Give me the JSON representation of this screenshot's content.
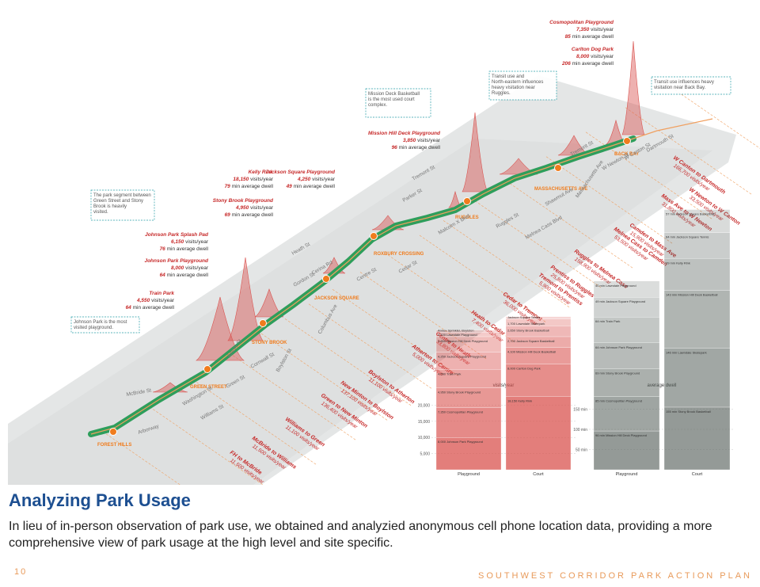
{
  "heading": "Analyzing Park Usage",
  "body": "In lieu of in-person observation of park use, we obtained and analyzied anonymous cell phone location data, providing a more comprehensive view of park usage at the high level and site specific.",
  "page_number": "10",
  "footer_title": "SOUTHWEST CORRIDOR PARK ACTION PLAN",
  "colors": {
    "accent": "#1d4f91",
    "park_green": "#2e9e5b",
    "peak_red": "#d9534f",
    "label_red": "#c62828",
    "station_orange": "#f07c1d",
    "callout_teal": "#2a9fa8",
    "footer_orange": "#e89a5a"
  },
  "stations": [
    "FOREST HILLS",
    "GREEN STREET",
    "STONY BROOK",
    "JACKSON SQUARE",
    "ROXBURY CROSSING",
    "RUGGLES",
    "MASSACHUSETTS AVE",
    "BACK BAY"
  ],
  "streets": [
    "Arborway",
    "McBride St",
    "Washington St",
    "Williams St",
    "Green St",
    "Amory St",
    "Cornwall St",
    "Boylston St",
    "Columbus Ave",
    "Gordon St",
    "Heath St",
    "Centre St",
    "Cerina Rd",
    "Cedar St",
    "Malcolm X Blvd",
    "Parker St",
    "Tremont St",
    "Ruggles St",
    "Melnea Cass Blvd",
    "Shawmut Ave",
    "Massachusetts Ave",
    "W Newton St",
    "W Canton St",
    "Dartmouth St",
    "Tremont St"
  ],
  "parks": [
    {
      "name": "Cosmopolitan Playground",
      "visits": "7,350",
      "visits_unit": "visits/year",
      "dwell": "85",
      "dwell_unit": "min average dwell"
    },
    {
      "name": "Carlton Dog Park",
      "visits": "8,000",
      "visits_unit": "visits/year",
      "dwell": "206",
      "dwell_unit": "min average dwell"
    },
    {
      "name": "Mission Hill Deck Playground",
      "visits": "3,850",
      "visits_unit": "visits/year",
      "dwell": "96",
      "dwell_unit": "min average dwell"
    },
    {
      "name": "Kelly Rink",
      "visits": "18,150",
      "visits_unit": "visits/year",
      "dwell": "79",
      "dwell_unit": "min average dwell"
    },
    {
      "name": "Jackson Square Playground",
      "visits": "4,250",
      "visits_unit": "visits/year",
      "dwell": "49",
      "dwell_unit": "min average dwell"
    },
    {
      "name": "Stony Brook Playground",
      "visits": "4,950",
      "visits_unit": "visits/year",
      "dwell": "69",
      "dwell_unit": "min average dwell"
    },
    {
      "name": "Johnson Park Splash Pad",
      "visits": "6,150",
      "visits_unit": "visits/year",
      "dwell": "76",
      "dwell_unit": "min average dwell"
    },
    {
      "name": "Johnson Park Playground",
      "visits": "8,000",
      "visits_unit": "visits/year",
      "dwell": "64",
      "dwell_unit": "min average dwell"
    },
    {
      "name": "Train Park",
      "visits": "4,550",
      "visits_unit": "visits/year",
      "dwell": "64",
      "dwell_unit": "min average dwell"
    }
  ],
  "callouts": [
    "Mission Deck Basketball is the most used court complex.",
    "Transit use and North-eastern influences heavy visitation near Ruggles.",
    "Transit use influences heavy visitation near Back Bay.",
    "The park segment between Green Street and Stony Brook is heavily visited.",
    "Johnson Park is the most visited playground."
  ],
  "segments": [
    {
      "label": "W Canton to Dartmouth",
      "visits": "166,700 visits/year"
    },
    {
      "label": "W Newton to W Canton",
      "visits": "33,500 visits/year"
    },
    {
      "label": "Mass Ave to W Newton",
      "visits": "31,800 visits/year"
    },
    {
      "label": "Camden to Mass Ave",
      "visits": "15,900 visits/year"
    },
    {
      "label": "Melnea Cass to Camden",
      "visits": "53,500 visits/year"
    },
    {
      "label": "Ruggles to Melnea Cass",
      "visits": "158,900 visits/year"
    },
    {
      "label": "Prentiss to Ruggles",
      "visits": "25,800 visits/year"
    },
    {
      "label": "Tremont to Prentiss",
      "visits": "5,900 visits/year"
    },
    {
      "label": "Cedar to Tremont",
      "visits": "36,000 visits/year"
    },
    {
      "label": "Heath to Cedar",
      "visits": "7,400 visits/year"
    },
    {
      "label": "Centre to Heath",
      "visits": "33,800 visits/year"
    },
    {
      "label": "Atherton to Centre",
      "visits": "5,000 visits/year"
    },
    {
      "label": "Boylston to Atherton",
      "visits": "11,100 visits/year"
    },
    {
      "label": "New Minton to Boylston",
      "visits": "137,100 visits/year"
    },
    {
      "label": "Green to New Minton",
      "visits": "136,400 visits/year"
    },
    {
      "label": "Williams to Green",
      "visits": "11,100 visits/year"
    },
    {
      "label": "McBride to Williams",
      "visits": "11,500 visits/year"
    },
    {
      "label": "FH to McBride",
      "visits": "11,500 visits/year"
    }
  ],
  "chart_data": [
    {
      "type": "bar",
      "title": "visits/year",
      "categories": [
        "Playground",
        "Court"
      ],
      "ylim": [
        0,
        20000
      ],
      "y_ticks": [
        "20,000",
        "15,000",
        "10,000",
        "5,000"
      ],
      "segments": [
        {
          "category": "Playground",
          "label": "8,000 Johnson Park Playground",
          "value": 8000
        },
        {
          "category": "Playground",
          "label": "7,350 Cosmopolitan Playground",
          "value": 7350
        },
        {
          "category": "Playground",
          "label": "4,950 Stony Brook Playground",
          "value": 4950
        },
        {
          "category": "Playground",
          "label": "4,550 Train Park",
          "value": 4550
        },
        {
          "category": "Playground",
          "label": "4,250 Jackson Square Playground",
          "value": 4250
        },
        {
          "category": "Playground",
          "label": "3,850 Mission Hill Deck Playground",
          "value": 3850
        },
        {
          "category": "Playground",
          "label": "1,100 Lawndale Playground",
          "value": 1100
        },
        {
          "category": "Playground",
          "label": "Annex Sprinkler, Boylston",
          "value": 500
        },
        {
          "category": "Court",
          "label": "18,150 Kelly Rink",
          "value": 18150
        },
        {
          "category": "Court",
          "label": "8,000 Carlton Dog Park",
          "value": 8000
        },
        {
          "category": "Court",
          "label": "4,100 Mission Hill Deck Basketball",
          "value": 4100
        },
        {
          "category": "Court",
          "label": "2,700 Jackson Square Basketball",
          "value": 2700
        },
        {
          "category": "Court",
          "label": "2,650 Stony Brook Basketball",
          "value": 2650
        },
        {
          "category": "Court",
          "label": "1,700 Lawndale Skatepark",
          "value": 1700
        },
        {
          "category": "Court",
          "label": "Jackson Square Tennis",
          "value": 600
        }
      ]
    },
    {
      "type": "bar",
      "title": "average dwell",
      "categories": [
        "Playground",
        "Court"
      ],
      "ylim": [
        0,
        200
      ],
      "y_ticks": [
        "150 min",
        "100 min",
        "50 min"
      ],
      "segments": [
        {
          "category": "Playground",
          "label": "96 min Mission Hill Deck Playground",
          "value": 96
        },
        {
          "category": "Playground",
          "label": "85 min Cosmopolitan Playground",
          "value": 85
        },
        {
          "category": "Playground",
          "label": "69 min Stony Brook Playground",
          "value": 69
        },
        {
          "category": "Playground",
          "label": "64 min Johnson Park Playground",
          "value": 64
        },
        {
          "category": "Playground",
          "label": "64 min Train Park",
          "value": 64
        },
        {
          "category": "Playground",
          "label": "49 min Jackson Square Playground",
          "value": 49
        },
        {
          "category": "Playground",
          "label": "40 min Lawndale Playground",
          "value": 40
        },
        {
          "category": "Court",
          "label": "155 min Stony Brook Basketball",
          "value": 155
        },
        {
          "category": "Court",
          "label": "146 min Lawndale Skatepark",
          "value": 146
        },
        {
          "category": "Court",
          "label": "143 min Mission Hill Deck Basketball",
          "value": 143
        },
        {
          "category": "Court",
          "label": "79 min Kelly Rink",
          "value": 79
        },
        {
          "category": "Court",
          "label": "64 min Jackson Square Tennis",
          "value": 64
        },
        {
          "category": "Court",
          "label": "57 min Jackson Square Basketball",
          "value": 57
        }
      ]
    }
  ]
}
